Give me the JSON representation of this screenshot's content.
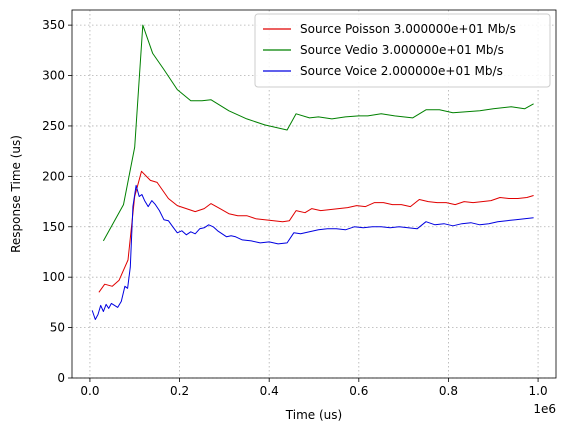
{
  "chart_data": {
    "type": "line",
    "xlabel": "Time (us)",
    "ylabel": "Response Time (us)",
    "x_offset_label": "1e6",
    "xlim": [
      -40000,
      1040000
    ],
    "ylim": [
      0,
      365
    ],
    "xticks": [
      0,
      200000,
      400000,
      600000,
      800000,
      1000000
    ],
    "xtick_labels": [
      "0.0",
      "0.2",
      "0.4",
      "0.6",
      "0.8",
      "1.0"
    ],
    "yticks": [
      0,
      50,
      100,
      150,
      200,
      250,
      300,
      350
    ],
    "ytick_labels": [
      "0",
      "50",
      "100",
      "150",
      "200",
      "250",
      "300",
      "350"
    ],
    "grid": true,
    "legend_position": "top-right",
    "series": [
      {
        "name": "Source Poisson 3.000000e+01 Mb/s",
        "color": "#e00000",
        "x": [
          20000,
          33000,
          50000,
          65000,
          85000,
          100000,
          115000,
          135000,
          150000,
          175000,
          195000,
          215000,
          235000,
          255000,
          270000,
          290000,
          310000,
          330000,
          350000,
          370000,
          390000,
          410000,
          430000,
          445000,
          460000,
          480000,
          495000,
          515000,
          535000,
          555000,
          575000,
          595000,
          615000,
          635000,
          655000,
          675000,
          695000,
          715000,
          735000,
          755000,
          775000,
          795000,
          815000,
          835000,
          855000,
          875000,
          895000,
          915000,
          935000,
          955000,
          975000,
          990000
        ],
        "y": [
          85,
          93,
          91,
          97,
          117,
          180,
          205,
          196,
          194,
          178,
          171,
          168,
          165,
          168,
          173,
          168,
          163,
          161,
          161,
          158,
          157,
          156,
          155,
          156,
          166,
          164,
          168,
          166,
          167,
          168,
          169,
          171,
          170,
          174,
          174,
          172,
          172,
          170,
          177,
          175,
          174,
          174,
          172,
          175,
          174,
          175,
          176,
          179,
          178,
          178,
          179,
          181
        ]
      },
      {
        "name": "Source Vedio 3.000000e+01 Mb/s",
        "color": "#008000",
        "x": [
          30000,
          75000,
          100000,
          118000,
          140000,
          165000,
          195000,
          225000,
          250000,
          270000,
          310000,
          350000,
          390000,
          440000,
          460000,
          490000,
          510000,
          540000,
          570000,
          600000,
          620000,
          650000,
          680000,
          720000,
          750000,
          780000,
          810000,
          840000,
          870000,
          900000,
          940000,
          970000,
          990000
        ],
        "y": [
          136,
          172,
          229,
          350,
          322,
          306,
          286,
          275,
          275,
          276,
          265,
          257,
          251,
          246,
          262,
          258,
          259,
          257,
          259,
          260,
          260,
          262,
          260,
          258,
          266,
          266,
          263,
          264,
          265,
          267,
          269,
          267,
          272
        ]
      },
      {
        "name": "Source Voice 2.000000e+01 Mb/s",
        "color": "#0000e0",
        "x": [
          5000,
          12000,
          18000,
          24000,
          30000,
          36000,
          42000,
          48000,
          55000,
          62000,
          70000,
          78000,
          84000,
          90000,
          96000,
          103000,
          110000,
          116000,
          122000,
          130000,
          138000,
          146000,
          155000,
          165000,
          175000,
          185000,
          195000,
          205000,
          215000,
          225000,
          235000,
          245000,
          255000,
          265000,
          275000,
          285000,
          295000,
          305000,
          315000,
          325000,
          340000,
          360000,
          380000,
          400000,
          420000,
          440000,
          455000,
          470000,
          490000,
          510000,
          530000,
          550000,
          570000,
          590000,
          610000,
          630000,
          650000,
          670000,
          690000,
          710000,
          730000,
          750000,
          770000,
          790000,
          810000,
          830000,
          850000,
          870000,
          890000,
          910000,
          930000,
          950000,
          970000,
          990000
        ],
        "y": [
          67,
          58,
          63,
          72,
          66,
          73,
          69,
          74,
          72,
          70,
          76,
          91,
          89,
          110,
          170,
          191,
          180,
          182,
          176,
          170,
          176,
          172,
          166,
          157,
          156,
          150,
          144,
          146,
          142,
          145,
          143,
          148,
          149,
          152,
          150,
          146,
          143,
          140,
          141,
          140,
          137,
          136,
          134,
          135,
          133,
          134,
          144,
          143,
          145,
          147,
          148,
          148,
          147,
          150,
          149,
          150,
          150,
          149,
          150,
          149,
          148,
          155,
          152,
          153,
          151,
          153,
          154,
          152,
          153,
          155,
          156,
          157,
          158,
          159
        ]
      }
    ]
  }
}
